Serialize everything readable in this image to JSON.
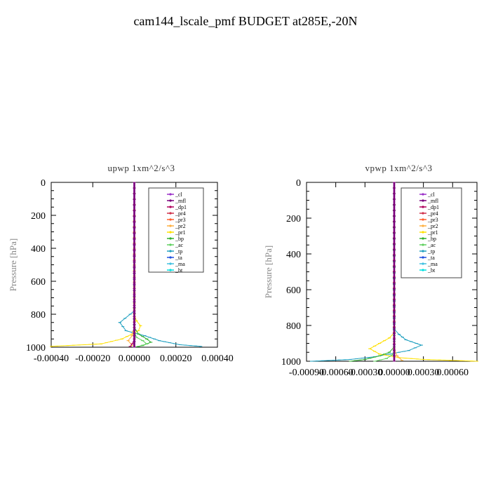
{
  "title": "cam144_lscale_pmf  BUDGET at285E,-20N",
  "legend_labels": [
    "_cl",
    "_mfl",
    "_dp1",
    "_pr4",
    "_pr3",
    "_pr2",
    "_pr1",
    "_bp",
    "_ac",
    "_tp",
    "_ta",
    "_ma",
    "_bt"
  ],
  "legend_colors": [
    "#9a30c8",
    "#7a007a",
    "#b0005a",
    "#d0304a",
    "#ff6030",
    "#ffb040",
    "#ffe000",
    "#30b030",
    "#60d060",
    "#20a0c0",
    "#2050e0",
    "#40c0e0",
    "#00e0e0"
  ],
  "chart_data": [
    {
      "type": "line",
      "title": "upwp  1xm^2/s^3",
      "ylabel": "Pressure [hPa]",
      "xlabel": "",
      "xlim": [
        -0.0004,
        0.0004
      ],
      "ylim": [
        1000,
        0
      ],
      "xticks": [
        -0.0004,
        -0.0002,
        0.0,
        0.0002,
        0.0004
      ],
      "xtick_labels": [
        "-0.00040",
        "-0.00020",
        "0.00000",
        "0.00020",
        "0.00040"
      ],
      "yticks": [
        0,
        200,
        400,
        600,
        800,
        1000
      ],
      "ytick_labels": [
        "0",
        "200",
        "400",
        "600",
        "800",
        "1000"
      ],
      "legend": "top-right",
      "series": [
        {
          "name": "_pr1",
          "x": [
            0,
            0,
            1e-05,
            3e-05,
            2e-05,
            -1e-05,
            -6e-05,
            -0.00016,
            -0.0004
          ],
          "y": [
            0,
            800,
            840,
            870,
            900,
            920,
            950,
            980,
            995
          ]
        },
        {
          "name": "_tp",
          "x": [
            0,
            0,
            -2e-05,
            -7e-05,
            -4e-05,
            5e-05,
            0.00012,
            0.00022,
            0.00032
          ],
          "y": [
            0,
            780,
            800,
            850,
            900,
            930,
            960,
            985,
            995
          ]
        },
        {
          "name": "_bp",
          "x": [
            0,
            0,
            2e-05,
            6e-05,
            8e-05,
            4e-05,
            0
          ],
          "y": [
            0,
            880,
            920,
            950,
            970,
            990,
            1000
          ]
        },
        {
          "name": "_ac",
          "x": [
            0,
            0,
            1e-05,
            4e-05,
            6e-05,
            2e-05
          ],
          "y": [
            0,
            900,
            940,
            960,
            980,
            995
          ]
        },
        {
          "name": "_pr2",
          "x": [
            0,
            0,
            -1e-05,
            -3e-05,
            -1e-05
          ],
          "y": [
            0,
            880,
            930,
            960,
            990
          ]
        },
        {
          "name": "_dp1",
          "x": [
            0,
            0,
            -1e-05,
            -2e-05
          ],
          "y": [
            0,
            950,
            980,
            995
          ]
        },
        {
          "name": "_cl",
          "x": [
            0,
            0
          ],
          "y": [
            0,
            1000
          ]
        },
        {
          "name": "_mfl",
          "x": [
            0,
            0
          ],
          "y": [
            0,
            1000
          ]
        }
      ]
    },
    {
      "type": "line",
      "title": "vpwp  1xm^2/s^3",
      "ylabel": "Pressure [hPa]",
      "xlabel": "",
      "xlim": [
        -0.0009,
        0.00085
      ],
      "ylim": [
        1000,
        0
      ],
      "xticks": [
        -0.0009,
        -0.0006,
        -0.0003,
        0.0,
        0.0003,
        0.0006
      ],
      "xtick_labels": [
        "-0.00090",
        "-0.00060",
        "-0.00030",
        "0.00000",
        "0.00030",
        "0.00060"
      ],
      "yticks": [
        0,
        200,
        400,
        600,
        800,
        1000
      ],
      "ytick_labels": [
        "0",
        "200",
        "400",
        "600",
        "800",
        "1000"
      ],
      "legend": "top-right",
      "series": [
        {
          "name": "_tp",
          "x": [
            0,
            0,
            5e-05,
            0.00012,
            0.00028,
            0.00015,
            -5e-05,
            -0.0002,
            -0.00045,
            -0.00085
          ],
          "y": [
            0,
            820,
            850,
            880,
            910,
            940,
            960,
            975,
            990,
            1000
          ]
        },
        {
          "name": "_pr1",
          "x": [
            0,
            0,
            -5e-05,
            -0.00015,
            -0.00025,
            -0.00015,
            5e-05,
            0.0003,
            0.00085
          ],
          "y": [
            0,
            840,
            870,
            900,
            930,
            960,
            980,
            990,
            1000
          ]
        },
        {
          "name": "_bp",
          "x": [
            0,
            0,
            -5e-05,
            -0.00015,
            -0.0003,
            -0.00045
          ],
          "y": [
            0,
            920,
            950,
            970,
            990,
            1000
          ]
        },
        {
          "name": "_ac",
          "x": [
            0,
            0,
            -2e-05,
            -8e-05,
            -0.0002
          ],
          "y": [
            0,
            940,
            965,
            985,
            1000
          ]
        },
        {
          "name": "_pr2",
          "x": [
            0,
            0,
            3e-05,
            8e-05
          ],
          "y": [
            0,
            930,
            970,
            995
          ]
        },
        {
          "name": "_cl",
          "x": [
            0,
            0
          ],
          "y": [
            0,
            1000
          ]
        },
        {
          "name": "_mfl",
          "x": [
            0,
            0
          ],
          "y": [
            0,
            1000
          ]
        }
      ]
    }
  ]
}
